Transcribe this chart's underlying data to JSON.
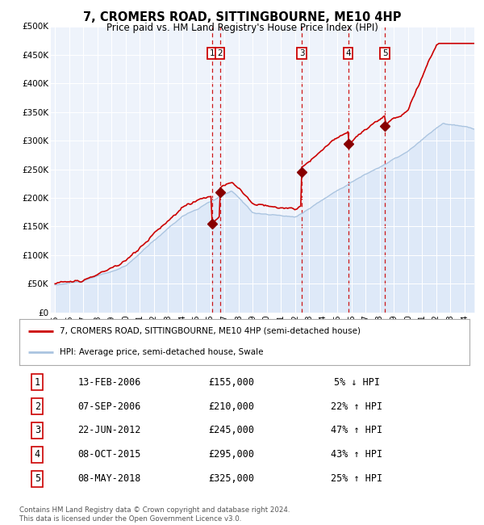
{
  "title": "7, CROMERS ROAD, SITTINGBOURNE, ME10 4HP",
  "subtitle": "Price paid vs. HM Land Registry's House Price Index (HPI)",
  "hpi_line_color": "#aac4e0",
  "hpi_fill_color": "#ccddf5",
  "price_line_color": "#cc0000",
  "price_marker_color": "#880000",
  "vline_color": "#cc0000",
  "yticks": [
    0,
    50000,
    100000,
    150000,
    200000,
    250000,
    300000,
    350000,
    400000,
    450000,
    500000
  ],
  "ytick_labels": [
    "£0",
    "£50K",
    "£100K",
    "£150K",
    "£200K",
    "£250K",
    "£300K",
    "£350K",
    "£400K",
    "£450K",
    "£500K"
  ],
  "xmin": 1994.7,
  "xmax": 2024.7,
  "ymin": 0,
  "ymax": 500000,
  "legend1_label": "7, CROMERS ROAD, SITTINGBOURNE, ME10 4HP (semi-detached house)",
  "legend2_label": "HPI: Average price, semi-detached house, Swale",
  "transactions": [
    {
      "num": 1,
      "date": "13-FEB-2006",
      "price": 155000,
      "pct": "5%",
      "dir": "↓"
    },
    {
      "num": 2,
      "date": "07-SEP-2006",
      "price": 210000,
      "pct": "22%",
      "dir": "↑"
    },
    {
      "num": 3,
      "date": "22-JUN-2012",
      "price": 245000,
      "pct": "47%",
      "dir": "↑"
    },
    {
      "num": 4,
      "date": "08-OCT-2015",
      "price": 295000,
      "pct": "43%",
      "dir": "↑"
    },
    {
      "num": 5,
      "date": "08-MAY-2018",
      "price": 325000,
      "pct": "25%",
      "dir": "↑"
    }
  ],
  "transaction_x": [
    2006.12,
    2006.69,
    2012.47,
    2015.77,
    2018.36
  ],
  "footnote": "Contains HM Land Registry data © Crown copyright and database right 2024.\nThis data is licensed under the Open Government Licence v3.0.",
  "background_color": "#ffffff",
  "chart_bg_color": "#eef3fb"
}
